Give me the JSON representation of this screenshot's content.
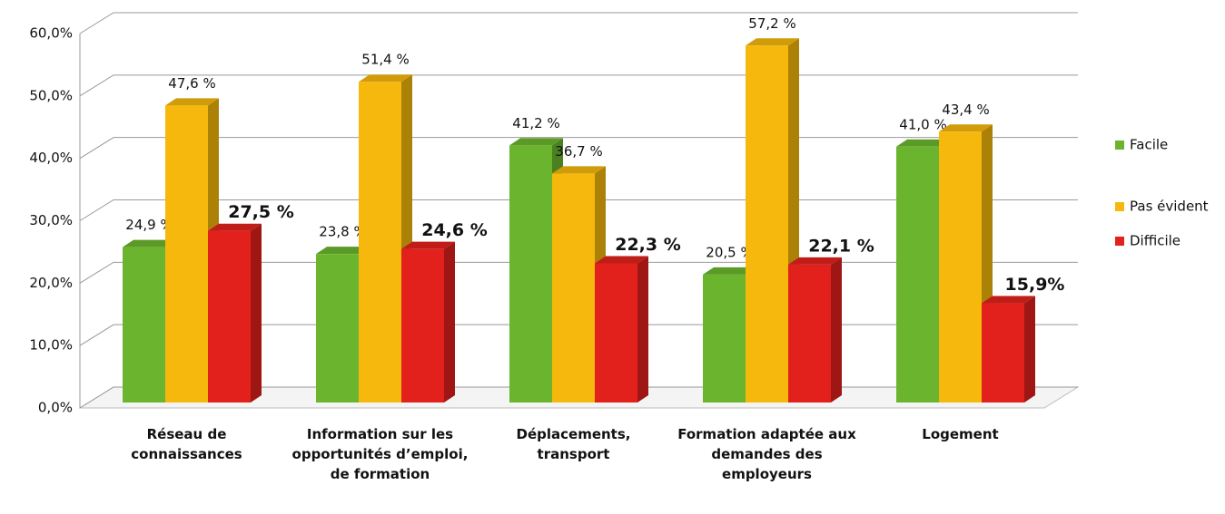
{
  "chart_data": {
    "type": "bar3d",
    "categories": [
      "Réseau de connaissances",
      "Information sur les opportunités d’emploi, de formation",
      "Déplacements, transport",
      "Formation adaptée aux demandes des employeurs",
      "Logement"
    ],
    "series": [
      {
        "name": "Facile",
        "color": "#6bb52e",
        "values": [
          24.9,
          23.8,
          41.2,
          20.5,
          41.0
        ],
        "value_labels": [
          "24,9 %",
          "23,8 %",
          "41,2 %",
          "20,5 %",
          "41,0 %"
        ]
      },
      {
        "name": "Pas évident",
        "color": "#f6b80c",
        "values": [
          47.6,
          51.4,
          36.7,
          57.2,
          43.4
        ],
        "value_labels": [
          "47,6 %",
          "51,4 %",
          "36,7 %",
          "57,2 %",
          "43,4 %"
        ]
      },
      {
        "name": "Difficile",
        "color": "#e2211c",
        "values": [
          27.5,
          24.6,
          22.3,
          22.1,
          15.9
        ],
        "value_labels": [
          "27,5 %",
          "24,6 %",
          "22,3 %",
          "22,1 %",
          "15,9%"
        ]
      }
    ],
    "ylim": [
      0,
      60
    ],
    "yticks": [
      {
        "value": 0,
        "label": "0,0%"
      },
      {
        "value": 10,
        "label": "10,0%"
      },
      {
        "value": 20,
        "label": "20,0%"
      },
      {
        "value": 30,
        "label": "30,0%"
      },
      {
        "value": 40,
        "label": "40,0%"
      },
      {
        "value": 50,
        "label": "50,0%"
      },
      {
        "value": 60,
        "label": "60,0%"
      }
    ],
    "grid": true,
    "legend": "right"
  }
}
